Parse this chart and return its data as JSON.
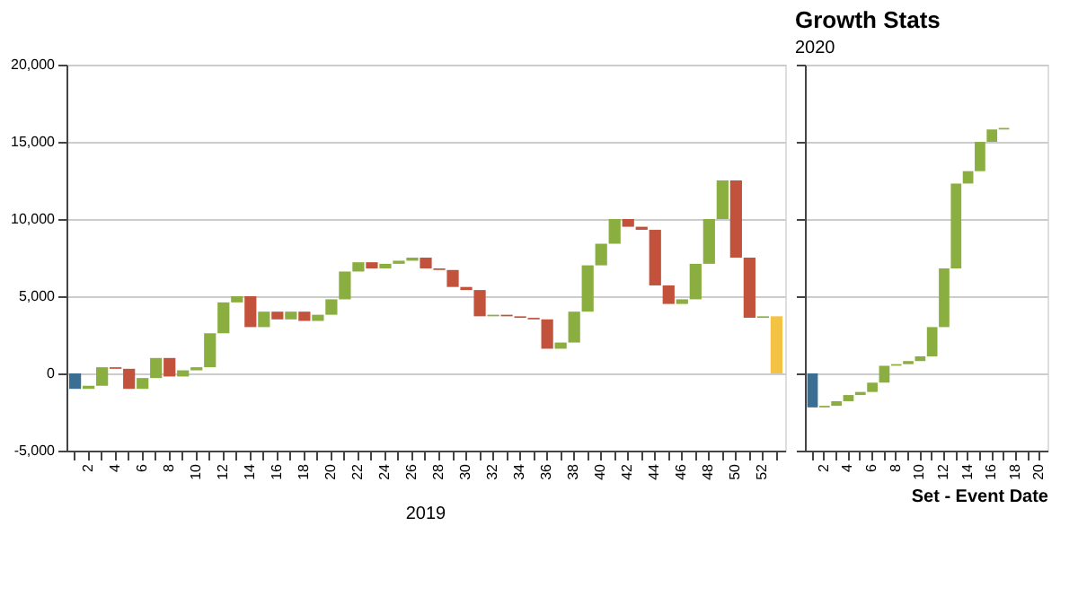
{
  "chart_data": [
    {
      "type": "bar",
      "categories": [
        null,
        "2",
        null,
        "4",
        null,
        "6",
        null,
        "8",
        null,
        "10",
        null,
        "12",
        null,
        "14",
        null,
        "16",
        null,
        "18",
        null,
        "20",
        null,
        "22",
        null,
        "24",
        null,
        "26",
        null,
        "28",
        null,
        "30",
        null,
        "32",
        null,
        "34",
        null,
        "36",
        null,
        "38",
        null,
        "40",
        null,
        "42",
        null,
        "44",
        null,
        "46",
        null,
        "48",
        null,
        "50",
        null,
        "52",
        null
      ],
      "base": [
        0,
        -1000,
        -800,
        400,
        300,
        -1000,
        -300,
        1000,
        -200,
        200,
        400,
        2600,
        4600,
        5000,
        3000,
        4000,
        3500,
        4000,
        3400,
        3800,
        4800,
        6600,
        7200,
        6800,
        7100,
        7300,
        7500,
        6800,
        6700,
        5600,
        5400,
        3700,
        3800,
        3700,
        3600,
        3500,
        1600,
        2000,
        4000,
        7000,
        8400,
        10000,
        9500,
        9300,
        5700,
        4500,
        4800,
        7100,
        10000,
        12500,
        7500,
        3600,
        0
      ],
      "values": [
        -1000,
        200,
        1200,
        -100,
        -1300,
        700,
        1300,
        -1200,
        400,
        200,
        2200,
        2000,
        400,
        -2000,
        1000,
        -500,
        500,
        -600,
        400,
        1000,
        1800,
        600,
        -400,
        300,
        200,
        200,
        -700,
        -100,
        -1100,
        -200,
        -1700,
        100,
        -100,
        -100,
        -100,
        -1900,
        400,
        2000,
        3000,
        1400,
        1600,
        -500,
        -200,
        -3600,
        -1200,
        300,
        2300,
        2900,
        2500,
        -5000,
        -3900,
        100,
        3700
      ],
      "colors": [
        "#3a6f93",
        "#8aae3f",
        "#8aae3f",
        "#c2523b",
        "#c2523b",
        "#8aae3f",
        "#8aae3f",
        "#c2523b",
        "#8aae3f",
        "#8aae3f",
        "#8aae3f",
        "#8aae3f",
        "#8aae3f",
        "#c2523b",
        "#8aae3f",
        "#c2523b",
        "#8aae3f",
        "#c2523b",
        "#8aae3f",
        "#8aae3f",
        "#8aae3f",
        "#8aae3f",
        "#c2523b",
        "#8aae3f",
        "#8aae3f",
        "#8aae3f",
        "#c2523b",
        "#c2523b",
        "#c2523b",
        "#c2523b",
        "#c2523b",
        "#8aae3f",
        "#c2523b",
        "#c2523b",
        "#c2523b",
        "#c2523b",
        "#8aae3f",
        "#8aae3f",
        "#8aae3f",
        "#8aae3f",
        "#8aae3f",
        "#c2523b",
        "#c2523b",
        "#c2523b",
        "#c2523b",
        "#8aae3f",
        "#8aae3f",
        "#8aae3f",
        "#8aae3f",
        "#c2523b",
        "#c2523b",
        "#8aae3f",
        "#f5c343"
      ],
      "ylim": [
        -5000,
        20000
      ],
      "yticks": [
        {
          "value": -5000,
          "label": "-5,000"
        },
        {
          "value": 0,
          "label": "0"
        },
        {
          "value": 5000,
          "label": "5,000"
        },
        {
          "value": 10000,
          "label": "10,000"
        },
        {
          "value": 15000,
          "label": "15,000"
        },
        {
          "value": 20000,
          "label": "20,000"
        }
      ],
      "grid": "y",
      "annotations": [
        "2019"
      ]
    },
    {
      "type": "bar",
      "title": "Growth Stats",
      "subtitle": "2020",
      "xlabel": "Set - Event Date",
      "categories": [
        null,
        "2",
        null,
        "4",
        null,
        "6",
        null,
        "8",
        null,
        "10",
        null,
        "12",
        null,
        "14",
        null,
        "16",
        null,
        "18",
        null,
        "20"
      ],
      "base": [
        0,
        -2200,
        -2100,
        -1800,
        -1400,
        -1200,
        -600,
        500,
        600,
        800,
        1100,
        3000,
        6800,
        12300,
        13100,
        15000,
        15800,
        null,
        null,
        null
      ],
      "values": [
        -2200,
        100,
        300,
        400,
        200,
        600,
        1100,
        100,
        200,
        300,
        1900,
        3800,
        5500,
        800,
        1900,
        800,
        100,
        null,
        null,
        null
      ],
      "colors": [
        "#3a6f93",
        "#8aae3f",
        "#8aae3f",
        "#8aae3f",
        "#8aae3f",
        "#8aae3f",
        "#8aae3f",
        "#8aae3f",
        "#8aae3f",
        "#8aae3f",
        "#8aae3f",
        "#8aae3f",
        "#8aae3f",
        "#8aae3f",
        "#8aae3f",
        "#8aae3f",
        "#8aae3f",
        null,
        null,
        null
      ],
      "ylim": [
        -5000,
        20000
      ],
      "yticks": [
        -5000,
        0,
        5000,
        10000,
        15000,
        20000
      ],
      "grid": "y",
      "tick_labels": "x"
    }
  ]
}
